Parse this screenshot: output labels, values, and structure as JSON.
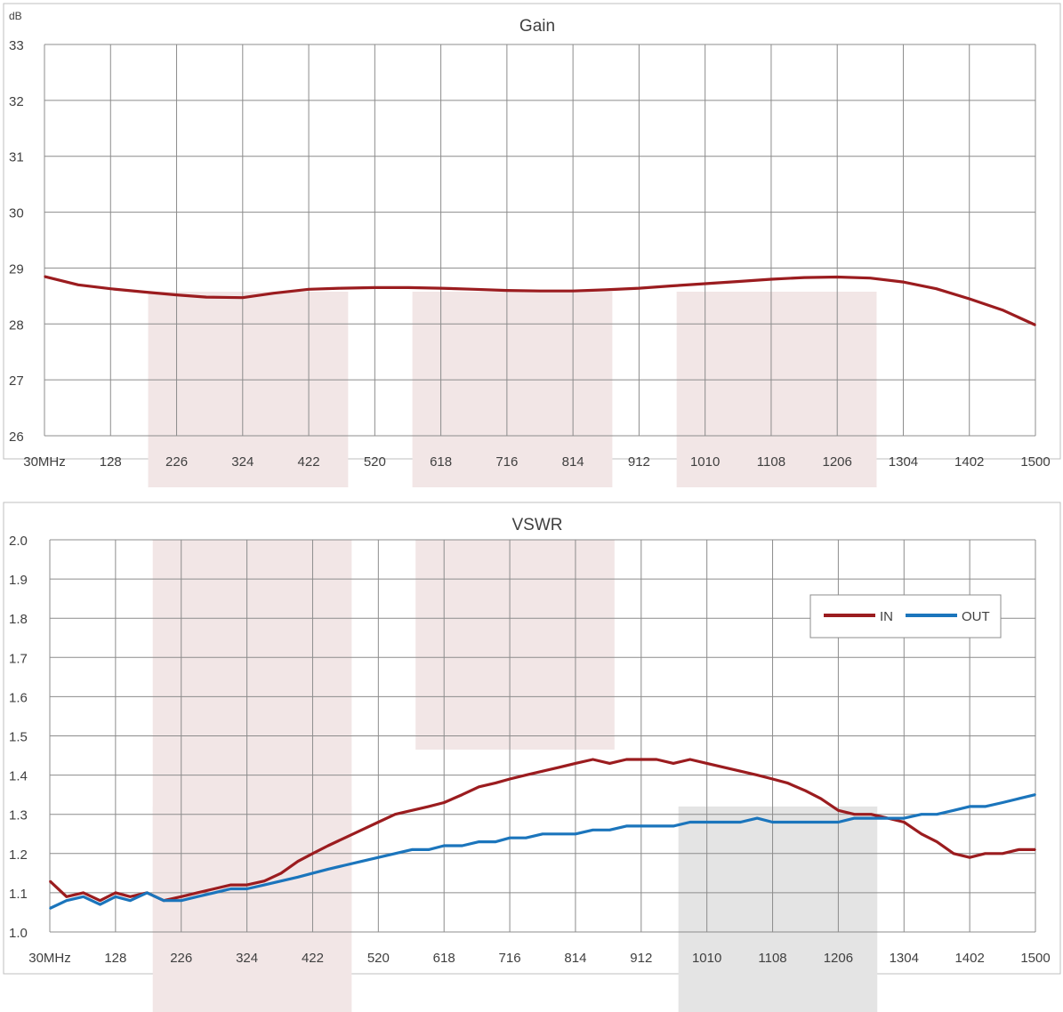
{
  "charts": [
    {
      "title": "Gain",
      "yunit": "dB",
      "x_ticks": [
        "30MHz",
        "128",
        "226",
        "324",
        "422",
        "520",
        "618",
        "716",
        "814",
        "912",
        "1010",
        "1108",
        "1206",
        "1304",
        "1402",
        "1500"
      ],
      "y_ticks": [
        "26",
        "27",
        "28",
        "29",
        "30",
        "31",
        "32",
        "33"
      ]
    },
    {
      "title": "VSWR",
      "x_ticks": [
        "30MHz",
        "128",
        "226",
        "324",
        "422",
        "520",
        "618",
        "716",
        "814",
        "912",
        "1010",
        "1108",
        "1206",
        "1304",
        "1402",
        "1500"
      ],
      "y_ticks": [
        "1.0",
        "1.1",
        "1.2",
        "1.3",
        "1.4",
        "1.5",
        "1.6",
        "1.7",
        "1.8",
        "1.9",
        "2.0"
      ],
      "legend": [
        "IN",
        "OUT"
      ]
    }
  ],
  "chart_data": [
    {
      "type": "line",
      "title": "Gain",
      "ylabel": "dB",
      "xlim": [
        30,
        1500
      ],
      "ylim": [
        26,
        33
      ],
      "x_ticks": [
        30,
        128,
        226,
        324,
        422,
        520,
        618,
        716,
        814,
        912,
        1010,
        1108,
        1206,
        1304,
        1402,
        1500
      ],
      "grid": true,
      "shaded_bands": [
        [
          226,
          520
        ],
        [
          618,
          912
        ],
        [
          1010,
          1304
        ]
      ],
      "series": [
        {
          "color": "#9b1c1f",
          "x": [
            30,
            80,
            128,
            180,
            226,
            270,
            324,
            370,
            422,
            470,
            520,
            570,
            618,
            668,
            716,
            765,
            814,
            862,
            912,
            960,
            1010,
            1060,
            1108,
            1157,
            1206,
            1255,
            1304,
            1353,
            1402,
            1451,
            1500
          ],
          "y": [
            28.85,
            28.7,
            28.63,
            28.57,
            28.52,
            28.48,
            28.47,
            28.55,
            28.62,
            28.64,
            28.65,
            28.65,
            28.64,
            28.62,
            28.6,
            28.59,
            28.59,
            28.61,
            28.64,
            28.68,
            28.72,
            28.76,
            28.8,
            28.83,
            28.84,
            28.82,
            28.75,
            28.63,
            28.45,
            28.25,
            27.98
          ]
        }
      ]
    },
    {
      "type": "line",
      "title": "VSWR",
      "xlim": [
        30,
        1500
      ],
      "ylim": [
        1.0,
        2.0
      ],
      "x_ticks": [
        30,
        128,
        226,
        324,
        422,
        520,
        618,
        716,
        814,
        912,
        1010,
        1108,
        1206,
        1304,
        1402,
        1500
      ],
      "grid": true,
      "legend_position": "upper-right",
      "shaded_bands": [
        [
          226,
          520
        ],
        [
          618,
          912
        ],
        [
          1010,
          1304
        ]
      ],
      "series": [
        {
          "name": "IN",
          "color": "#9b1c1f",
          "x": [
            30,
            55,
            80,
            105,
            128,
            150,
            175,
            200,
            226,
            250,
            275,
            300,
            324,
            350,
            375,
            400,
            422,
            445,
            470,
            495,
            520,
            545,
            570,
            595,
            618,
            645,
            670,
            695,
            716,
            740,
            765,
            790,
            814,
            840,
            865,
            890,
            912,
            935,
            960,
            985,
            1010,
            1035,
            1060,
            1085,
            1108,
            1130,
            1157,
            1180,
            1206,
            1230,
            1255,
            1280,
            1304,
            1330,
            1353,
            1378,
            1402,
            1425,
            1451,
            1475,
            1500
          ],
          "y": [
            1.13,
            1.09,
            1.1,
            1.08,
            1.1,
            1.09,
            1.1,
            1.08,
            1.09,
            1.1,
            1.11,
            1.12,
            1.12,
            1.13,
            1.15,
            1.18,
            1.2,
            1.22,
            1.24,
            1.26,
            1.28,
            1.3,
            1.31,
            1.32,
            1.33,
            1.35,
            1.37,
            1.38,
            1.39,
            1.4,
            1.41,
            1.42,
            1.43,
            1.44,
            1.43,
            1.44,
            1.44,
            1.44,
            1.43,
            1.44,
            1.43,
            1.42,
            1.41,
            1.4,
            1.39,
            1.38,
            1.36,
            1.34,
            1.31,
            1.3,
            1.3,
            1.29,
            1.28,
            1.25,
            1.23,
            1.2,
            1.19,
            1.2,
            1.2,
            1.21,
            1.21
          ]
        },
        {
          "name": "OUT",
          "color": "#1b75bc",
          "x": [
            30,
            55,
            80,
            105,
            128,
            150,
            175,
            200,
            226,
            250,
            275,
            300,
            324,
            350,
            375,
            400,
            422,
            445,
            470,
            495,
            520,
            545,
            570,
            595,
            618,
            645,
            670,
            695,
            716,
            740,
            765,
            790,
            814,
            840,
            865,
            890,
            912,
            935,
            960,
            985,
            1010,
            1035,
            1060,
            1085,
            1108,
            1130,
            1157,
            1180,
            1206,
            1230,
            1255,
            1280,
            1304,
            1330,
            1353,
            1378,
            1402,
            1425,
            1451,
            1475,
            1500
          ],
          "y": [
            1.06,
            1.08,
            1.09,
            1.07,
            1.09,
            1.08,
            1.1,
            1.08,
            1.08,
            1.09,
            1.1,
            1.11,
            1.11,
            1.12,
            1.13,
            1.14,
            1.15,
            1.16,
            1.17,
            1.18,
            1.19,
            1.2,
            1.21,
            1.21,
            1.22,
            1.22,
            1.23,
            1.23,
            1.24,
            1.24,
            1.25,
            1.25,
            1.25,
            1.26,
            1.26,
            1.27,
            1.27,
            1.27,
            1.27,
            1.28,
            1.28,
            1.28,
            1.28,
            1.29,
            1.28,
            1.28,
            1.28,
            1.28,
            1.28,
            1.29,
            1.29,
            1.29,
            1.29,
            1.3,
            1.3,
            1.31,
            1.32,
            1.32,
            1.33,
            1.34,
            1.35
          ]
        }
      ]
    }
  ]
}
